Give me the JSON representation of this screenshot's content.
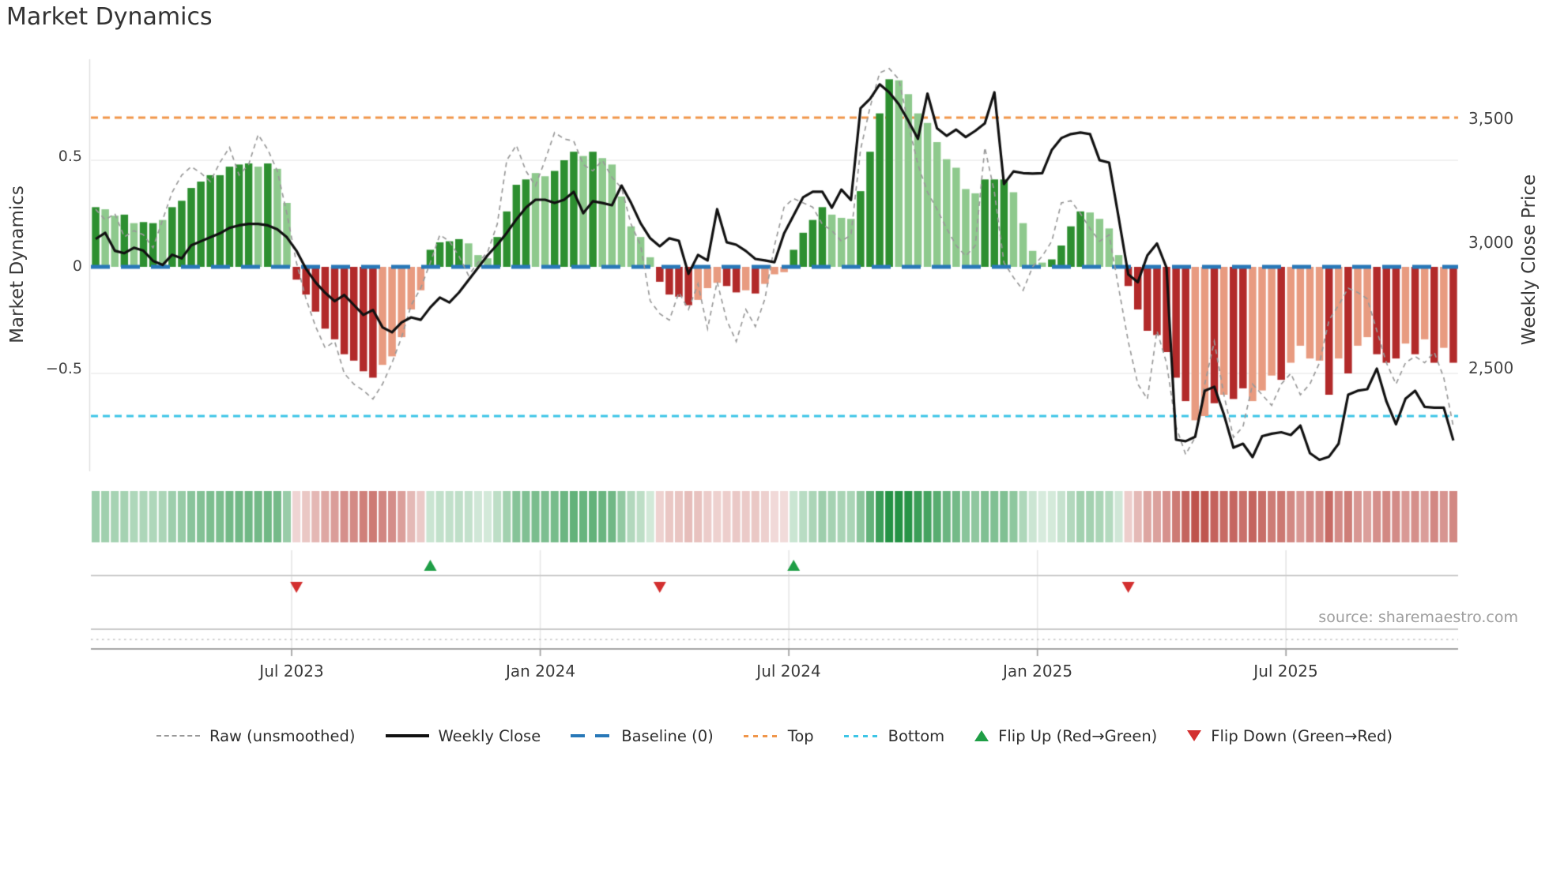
{
  "title": "Market Dynamics",
  "source_text": "source: sharemaestro.com",
  "axes": {
    "left_label": "Market Dynamics",
    "right_label": "Weekly Close Price",
    "left_ticks": [
      "0.5",
      "0",
      "−0.5"
    ],
    "right_ticks": [
      "3,500",
      "3,000",
      "2,500"
    ],
    "x_ticks": [
      "Jul 2023",
      "Jan 2024",
      "Jul 2024",
      "Jan 2025",
      "Jul 2025"
    ]
  },
  "legend": [
    {
      "label": "Raw (unsmoothed)",
      "swatch": "dashed-gray-line"
    },
    {
      "label": "Weekly Close",
      "swatch": "solid-black-line"
    },
    {
      "label": "Baseline (0)",
      "swatch": "dashed-blue-line"
    },
    {
      "label": "Top",
      "swatch": "dotted-orange-line"
    },
    {
      "label": "Bottom",
      "swatch": "dotted-cyan-line"
    },
    {
      "label": "Flip Up (Red→Green)",
      "swatch": "green-up-triangle"
    },
    {
      "label": "Flip Down (Green→Red)",
      "swatch": "red-down-triangle"
    }
  ],
  "colors": {
    "bar_up_strong": "#2d8f30",
    "bar_up_light": "#8ec98d",
    "bar_down_strong": "#b22a2a",
    "bar_down_light": "#e89b80",
    "price_line": "#111111",
    "raw_line": "#999999",
    "baseline": "#2878b8",
    "top_line": "#f0964a",
    "bottom_line": "#3dc5e6",
    "flip_up": "#1f9e46",
    "flip_down": "#d32f2f",
    "strip_up": "#249244",
    "strip_down": "#b63e36",
    "grid": "#ececec",
    "band_line": "#cacaca",
    "axis_line": "#a3a3a3"
  },
  "chart_data": {
    "type": "bar",
    "subtype": "bar+line combo, weekly oscillator with secondary price axis and heatmap strip",
    "title": "Market Dynamics",
    "xlabel": "",
    "ylabel_left": "Market Dynamics",
    "ylabel_right": "Weekly Close Price",
    "left_ylim": [
      -0.96,
      0.97
    ],
    "right_ylim": [
      2083,
      3738
    ],
    "baseline": 0,
    "top_threshold": 0.7,
    "bottom_threshold": -0.7,
    "grid": "horizontal at +0.5 / -0.5",
    "legend_position": "bottom center",
    "x_tick_weeks": [
      21,
      47,
      73,
      99,
      125
    ],
    "x_tick_labels": [
      "Jul 2023",
      "Jan 2024",
      "Jul 2024",
      "Jan 2025",
      "Jul 2025"
    ],
    "markers": [
      {
        "week": 21,
        "dir": "down"
      },
      {
        "week": 35,
        "dir": "up"
      },
      {
        "week": 59,
        "dir": "down"
      },
      {
        "week": 73,
        "dir": "up"
      },
      {
        "week": 108,
        "dir": "down"
      }
    ],
    "dyn": [
      0.28,
      0.27,
      0.24,
      0.245,
      0.205,
      0.21,
      0.205,
      0.22,
      0.28,
      0.31,
      0.37,
      0.4,
      0.43,
      0.43,
      0.47,
      0.48,
      0.485,
      0.47,
      0.485,
      0.46,
      0.3,
      -0.06,
      -0.13,
      -0.21,
      -0.29,
      -0.34,
      -0.41,
      -0.44,
      -0.49,
      -0.52,
      -0.46,
      -0.42,
      -0.33,
      -0.2,
      -0.11,
      0.08,
      0.115,
      0.12,
      0.13,
      0.11,
      0.055,
      0.04,
      0.14,
      0.26,
      0.385,
      0.41,
      0.44,
      0.425,
      0.45,
      0.5,
      0.54,
      0.52,
      0.54,
      0.51,
      0.48,
      0.33,
      0.19,
      0.14,
      0.045,
      -0.07,
      -0.13,
      -0.14,
      -0.18,
      -0.155,
      -0.1,
      -0.075,
      -0.09,
      -0.12,
      -0.11,
      -0.125,
      -0.08,
      -0.035,
      -0.025,
      0.08,
      0.16,
      0.22,
      0.28,
      0.245,
      0.23,
      0.225,
      0.355,
      0.54,
      0.72,
      0.88,
      0.875,
      0.81,
      0.72,
      0.675,
      0.585,
      0.505,
      0.465,
      0.365,
      0.345,
      0.41,
      0.41,
      0.41,
      0.35,
      0.205,
      0.075,
      0.02,
      0.035,
      0.1,
      0.19,
      0.26,
      0.255,
      0.225,
      0.18,
      0.055,
      -0.09,
      -0.2,
      -0.3,
      -0.32,
      -0.4,
      -0.52,
      -0.63,
      -0.72,
      -0.7,
      -0.64,
      -0.6,
      -0.62,
      -0.57,
      -0.63,
      -0.58,
      -0.51,
      -0.53,
      -0.45,
      -0.37,
      -0.43,
      -0.44,
      -0.6,
      -0.43,
      -0.5,
      -0.37,
      -0.33,
      -0.41,
      -0.45,
      -0.43,
      -0.36,
      -0.41,
      -0.34,
      -0.45,
      -0.38,
      -0.45
    ],
    "shade": [
      1,
      0,
      0,
      1,
      0,
      1,
      1,
      0,
      1,
      1,
      1,
      1,
      1,
      1,
      1,
      1,
      1,
      0,
      1,
      0,
      0,
      1,
      1,
      1,
      1,
      1,
      1,
      1,
      1,
      1,
      0,
      0,
      0,
      0,
      0,
      1,
      1,
      1,
      1,
      0,
      0,
      0,
      1,
      1,
      1,
      1,
      0,
      0,
      1,
      1,
      1,
      0,
      1,
      0,
      0,
      0,
      0,
      0,
      0,
      1,
      1,
      1,
      1,
      0,
      0,
      0,
      1,
      1,
      0,
      1,
      0,
      0,
      0,
      1,
      1,
      1,
      1,
      0,
      0,
      0,
      1,
      1,
      1,
      1,
      0,
      0,
      0,
      0,
      0,
      0,
      0,
      0,
      0,
      1,
      1,
      1,
      0,
      0,
      0,
      0,
      1,
      1,
      1,
      1,
      0,
      0,
      0,
      0,
      1,
      1,
      1,
      1,
      1,
      1,
      1,
      0,
      0,
      1,
      0,
      1,
      1,
      0,
      0,
      0,
      1,
      0,
      0,
      0,
      0,
      1,
      0,
      1,
      0,
      0,
      1,
      1,
      1,
      0,
      1,
      0,
      1,
      0,
      1
    ],
    "raw": [
      0.27,
      0.22,
      0.25,
      0.14,
      0.17,
      0.15,
      0.09,
      0.22,
      0.35,
      0.43,
      0.47,
      0.44,
      0.4,
      0.49,
      0.56,
      0.43,
      0.48,
      0.62,
      0.55,
      0.45,
      0.25,
      0.02,
      -0.15,
      -0.28,
      -0.38,
      -0.35,
      -0.5,
      -0.55,
      -0.58,
      -0.62,
      -0.55,
      -0.45,
      -0.33,
      -0.18,
      -0.1,
      0.02,
      0.15,
      0.12,
      0.05,
      -0.04,
      0.02,
      0.07,
      0.2,
      0.5,
      0.57,
      0.45,
      0.38,
      0.5,
      0.63,
      0.6,
      0.59,
      0.48,
      0.45,
      0.5,
      0.42,
      0.37,
      0.2,
      0.1,
      -0.16,
      -0.22,
      -0.25,
      -0.12,
      -0.2,
      -0.08,
      -0.29,
      -0.07,
      -0.25,
      -0.35,
      -0.2,
      -0.28,
      -0.15,
      0.1,
      0.28,
      0.32,
      0.3,
      0.28,
      0.2,
      0.17,
      0.12,
      0.15,
      0.55,
      0.75,
      0.91,
      0.93,
      0.88,
      0.67,
      0.48,
      0.35,
      0.27,
      0.18,
      0.1,
      0.05,
      0.1,
      0.56,
      0.35,
      0.02,
      -0.05,
      -0.11,
      0.0,
      0.05,
      0.12,
      0.3,
      0.31,
      0.25,
      0.18,
      0.12,
      0.15,
      -0.1,
      -0.35,
      -0.55,
      -0.62,
      -0.3,
      -0.45,
      -0.75,
      -0.88,
      -0.8,
      -0.55,
      -0.35,
      -0.6,
      -0.8,
      -0.75,
      -0.55,
      -0.6,
      -0.65,
      -0.55,
      -0.5,
      -0.6,
      -0.55,
      -0.45,
      -0.25,
      -0.18,
      -0.1,
      -0.12,
      -0.15,
      -0.3,
      -0.45,
      -0.55,
      -0.45,
      -0.42,
      -0.45,
      -0.4,
      -0.52,
      -0.75
    ],
    "price": [
      3015,
      3040,
      2968,
      2958,
      2980,
      2968,
      2927,
      2911,
      2952,
      2937,
      2990,
      3006,
      3022,
      3038,
      3060,
      3070,
      3076,
      3076,
      3070,
      3054,
      3022,
      2968,
      2895,
      2841,
      2799,
      2765,
      2790,
      2750,
      2710,
      2730,
      2660,
      2640,
      2680,
      2700,
      2690,
      2740,
      2780,
      2760,
      2800,
      2850,
      2900,
      2950,
      2992,
      3040,
      3094,
      3141,
      3173,
      3173,
      3160,
      3173,
      3205,
      3119,
      3167,
      3160,
      3151,
      3230,
      3160,
      3078,
      3018,
      2986,
      3018,
      3008,
      2875,
      2951,
      2929,
      3135,
      3002,
      2992,
      2967,
      2935,
      2929,
      2922,
      3037,
      3110,
      3183,
      3205,
      3205,
      3141,
      3214,
      3172,
      3541,
      3579,
      3637,
      3605,
      3557,
      3490,
      3418,
      3600,
      3460,
      3430,
      3455,
      3425,
      3450,
      3480,
      3605,
      3236,
      3287,
      3280,
      3278,
      3280,
      3373,
      3421,
      3437,
      3443,
      3437,
      3332,
      3322,
      3100,
      2873,
      2841,
      2949,
      2997,
      2900,
      2208,
      2202,
      2220,
      2405,
      2421,
      2310,
      2176,
      2192,
      2138,
      2222,
      2232,
      2238,
      2227,
      2265,
      2154,
      2127,
      2140,
      2192,
      2389,
      2405,
      2411,
      2494,
      2362,
      2270,
      2373,
      2405,
      2340,
      2337,
      2337,
      2205
    ]
  }
}
